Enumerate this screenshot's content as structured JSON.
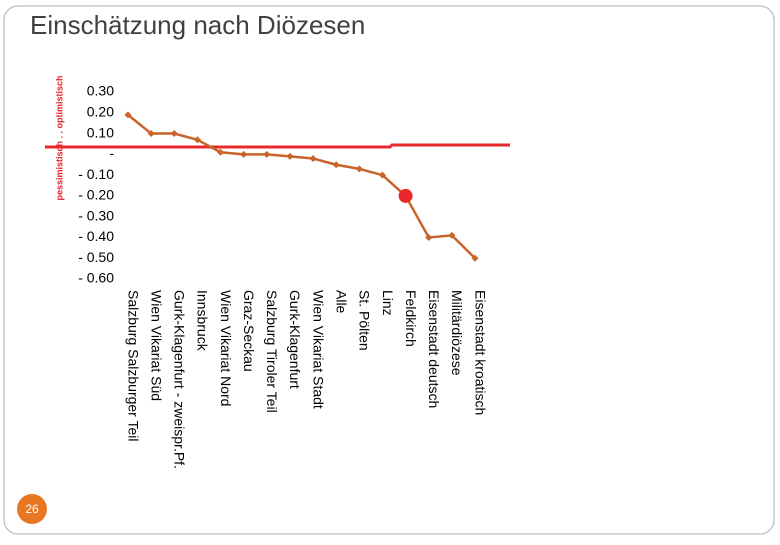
{
  "slide": {
    "page_number": "26"
  },
  "chart_data": {
    "type": "line",
    "title": "Einschätzung nach Diözesen",
    "y_label": "pessimistisch . . optimistisch",
    "categories": [
      "Salzburg Salzburger Teil",
      "Wien Vikariat Süd",
      "Gurk-Klagenfurt - zweispr.Pf.",
      "Innsbruck",
      "Wien Vikariat Nord",
      "Graz-Seckau",
      "Salzburg Tiroler Teil",
      "Gurk-Klagenfurt",
      "Wien Vikariat Stadt",
      "Alle",
      "St. Pölten",
      "Linz",
      "Feldkirch",
      "Eisenstadt deutsch",
      "Militärdiözese",
      "Eisenstadt kroatisch"
    ],
    "values": [
      0.19,
      0.1,
      0.1,
      0.07,
      0.01,
      0.0,
      0.0,
      -0.01,
      -0.02,
      -0.05,
      -0.07,
      -0.1,
      -0.2,
      -0.4,
      -0.39,
      -0.5
    ],
    "color": "#c8642a",
    "ylim": [
      -0.6,
      0.3
    ],
    "yticks": [
      {
        "value": 0.3,
        "label": "0.30"
      },
      {
        "value": 0.2,
        "label": "0.20"
      },
      {
        "value": 0.1,
        "label": "0.10"
      },
      {
        "value": 0,
        "label": "-"
      },
      {
        "value": -0.1,
        "label": "- 0.10"
      },
      {
        "value": -0.2,
        "label": "- 0.20"
      },
      {
        "value": -0.3,
        "label": "- 0.30"
      },
      {
        "value": -0.4,
        "label": "- 0.40"
      },
      {
        "value": -0.5,
        "label": "- 0.50"
      },
      {
        "value": -0.6,
        "label": "- 0.60"
      }
    ]
  }
}
